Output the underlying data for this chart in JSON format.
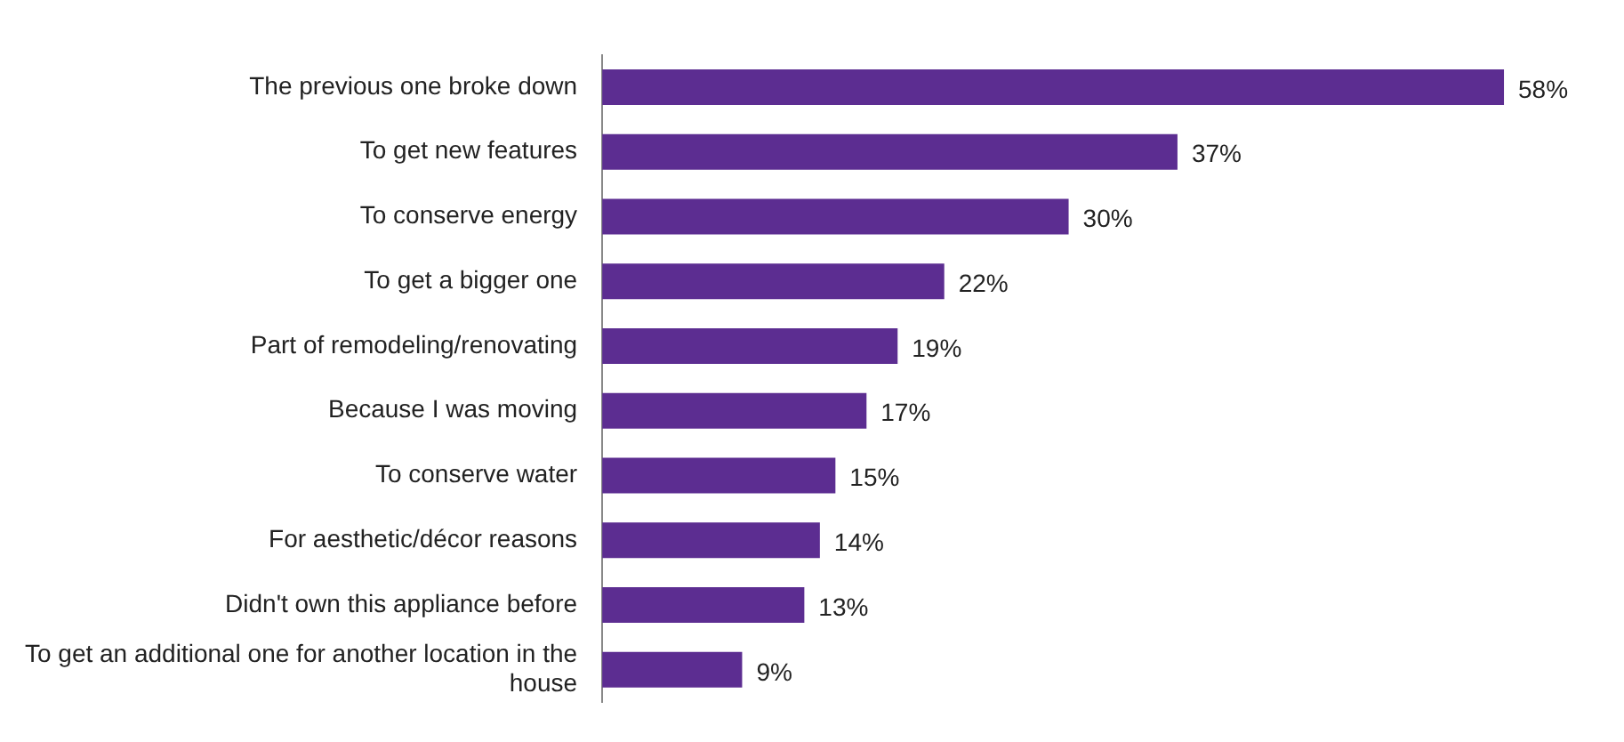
{
  "chart_data": {
    "type": "bar",
    "orientation": "horizontal",
    "color": "#5c2d91",
    "categories": [
      "The previous one broke down",
      "To get new features",
      "To conserve energy",
      "To get a bigger one",
      "Part of remodeling/renovating",
      "Because I was moving",
      "To conserve water",
      "For aesthetic/décor reasons",
      "Didn't own this appliance before",
      "To get an additional one for another location in the house"
    ],
    "values": [
      58,
      37,
      30,
      22,
      19,
      17,
      15,
      14,
      13,
      9
    ],
    "value_labels": [
      "58%",
      "37%",
      "30%",
      "22%",
      "19%",
      "17%",
      "15%",
      "14%",
      "13%",
      "9%"
    ],
    "legend": false
  }
}
